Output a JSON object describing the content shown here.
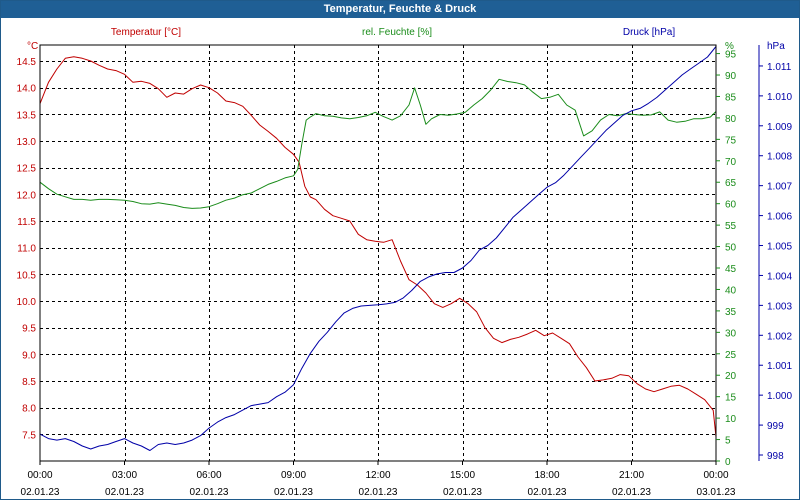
{
  "window": {
    "title": "Temperatur, Feuchte & Druck"
  },
  "colors": {
    "temperature": "#c00000",
    "humidity": "#1a8c1a",
    "pressure": "#0000a8",
    "grid": "#000000",
    "text": "#000000"
  },
  "chart_data": {
    "type": "line",
    "title": "Temperatur, Feuchte & Druck",
    "x": {
      "min": 0,
      "max": 24,
      "ticks": [
        0,
        3,
        6,
        9,
        12,
        15,
        18,
        21,
        24
      ],
      "tick_labels": [
        "00:00",
        "03:00",
        "06:00",
        "09:00",
        "12:00",
        "15:00",
        "18:00",
        "21:00",
        "00:00"
      ],
      "date_labels": [
        "02.01.23",
        "02.01.23",
        "02.01.23",
        "02.01.23",
        "02.01.23",
        "02.01.23",
        "02.01.23",
        "02.01.23",
        "03.01.23"
      ]
    },
    "axes": {
      "temperature": {
        "label": "Temperatur [°C]",
        "unit": "°C",
        "min": 7.0,
        "max": 14.8,
        "ticks": [
          7.5,
          8.0,
          8.5,
          9.0,
          9.5,
          10.0,
          10.5,
          11.0,
          11.5,
          12.0,
          12.5,
          13.0,
          13.5,
          14.0,
          14.5
        ],
        "tick_labels": [
          "7.5",
          "8.0",
          "8.5",
          "9.0",
          "9.5",
          "10.0",
          "10.5",
          "11.0",
          "11.5",
          "12.0",
          "12.5",
          "13.0",
          "13.5",
          "14.0",
          "14.5"
        ]
      },
      "humidity": {
        "label": "rel. Feuchte [%]",
        "unit": "%",
        "min": 0,
        "max": 97,
        "ticks": [
          0,
          5,
          10,
          15,
          20,
          25,
          30,
          35,
          40,
          45,
          50,
          55,
          60,
          65,
          70,
          75,
          80,
          85,
          90,
          95
        ],
        "tick_labels": [
          "0",
          "5",
          "10",
          "15",
          "20",
          "25",
          "30",
          "35",
          "40",
          "45",
          "50",
          "55",
          "60",
          "65",
          "70",
          "75",
          "80",
          "85",
          "90",
          "95"
        ]
      },
      "pressure": {
        "label": "Druck [hPa]",
        "unit": "hPa",
        "min": 997.8,
        "max": 1011.7,
        "ticks": [
          998,
          999,
          1000,
          1001,
          1002,
          1003,
          1004,
          1005,
          1006,
          1007,
          1008,
          1009,
          1010,
          1011
        ],
        "tick_labels": [
          "998",
          "999",
          "1.000",
          "1.001",
          "1.002",
          "1.003",
          "1.004",
          "1.005",
          "1.006",
          "1.007",
          "1.008",
          "1.009",
          "1.010",
          "1.011"
        ]
      }
    },
    "series": [
      {
        "name": "Temperatur [°C]",
        "axis": "temperature",
        "x": [
          0,
          0.3,
          0.6,
          0.9,
          1.2,
          1.5,
          1.8,
          2.1,
          2.4,
          2.7,
          3.0,
          3.3,
          3.6,
          3.9,
          4.2,
          4.5,
          4.8,
          5.1,
          5.4,
          5.7,
          6.0,
          6.3,
          6.6,
          6.9,
          7.2,
          7.5,
          7.8,
          8.1,
          8.4,
          8.7,
          9.0,
          9.2,
          9.4,
          9.6,
          9.8,
          10.1,
          10.4,
          10.7,
          11.0,
          11.3,
          11.6,
          11.9,
          12.2,
          12.5,
          12.8,
          13.1,
          13.4,
          13.7,
          14.0,
          14.3,
          14.6,
          14.9,
          15.2,
          15.5,
          15.8,
          16.1,
          16.4,
          16.7,
          17.0,
          17.3,
          17.6,
          17.9,
          18.2,
          18.5,
          18.8,
          19.1,
          19.4,
          19.7,
          20.0,
          20.3,
          20.6,
          20.9,
          21.2,
          21.5,
          21.8,
          22.1,
          22.4,
          22.7,
          23.0,
          23.3,
          23.6,
          23.9,
          24.0
        ],
        "values": [
          13.7,
          14.1,
          14.35,
          14.55,
          14.58,
          14.55,
          14.5,
          14.42,
          14.35,
          14.32,
          14.25,
          14.1,
          14.12,
          14.08,
          13.98,
          13.82,
          13.9,
          13.88,
          13.98,
          14.05,
          14.0,
          13.9,
          13.75,
          13.72,
          13.65,
          13.48,
          13.3,
          13.18,
          13.05,
          12.88,
          12.75,
          12.6,
          12.15,
          11.95,
          11.9,
          11.72,
          11.6,
          11.55,
          11.5,
          11.25,
          11.15,
          11.12,
          11.1,
          11.15,
          10.75,
          10.4,
          10.3,
          10.15,
          9.95,
          9.88,
          9.95,
          10.05,
          9.95,
          9.8,
          9.5,
          9.3,
          9.22,
          9.28,
          9.32,
          9.38,
          9.45,
          9.35,
          9.4,
          9.3,
          9.2,
          8.95,
          8.75,
          8.5,
          8.52,
          8.55,
          8.62,
          8.6,
          8.45,
          8.35,
          8.3,
          8.35,
          8.4,
          8.42,
          8.35,
          8.25,
          8.15,
          7.95,
          7.45
        ]
      },
      {
        "name": "rel. Feuchte [%]",
        "axis": "humidity",
        "x": [
          0,
          0.3,
          0.6,
          0.9,
          1.2,
          1.5,
          1.8,
          2.1,
          2.4,
          2.7,
          3.0,
          3.3,
          3.6,
          3.9,
          4.2,
          4.5,
          4.8,
          5.1,
          5.4,
          5.7,
          6.0,
          6.3,
          6.6,
          6.9,
          7.2,
          7.5,
          7.8,
          8.1,
          8.4,
          8.7,
          9.0,
          9.15,
          9.3,
          9.45,
          9.6,
          9.8,
          10.1,
          10.4,
          10.7,
          11.0,
          11.3,
          11.6,
          11.9,
          12.2,
          12.5,
          12.8,
          13.1,
          13.3,
          13.5,
          13.7,
          13.9,
          14.2,
          14.5,
          14.8,
          15.1,
          15.4,
          15.7,
          16.0,
          16.3,
          16.6,
          16.9,
          17.2,
          17.5,
          17.8,
          18.1,
          18.4,
          18.7,
          19.0,
          19.3,
          19.6,
          19.9,
          20.2,
          20.5,
          20.8,
          21.1,
          21.4,
          21.7,
          22.0,
          22.3,
          22.6,
          22.9,
          23.2,
          23.5,
          23.8,
          24.0
        ],
        "values": [
          65,
          63.5,
          62.2,
          61.6,
          61.0,
          61.0,
          60.8,
          61.0,
          61.0,
          60.9,
          60.8,
          60.5,
          60.0,
          59.9,
          60.2,
          59.9,
          59.6,
          59.1,
          58.9,
          59.0,
          59.3,
          60.0,
          60.8,
          61.3,
          62.1,
          62.5,
          63.5,
          64.5,
          65.2,
          66.0,
          66.5,
          68.0,
          74.0,
          79.5,
          80.2,
          81.0,
          80.5,
          80.4,
          80.0,
          79.8,
          80.1,
          80.5,
          81.3,
          80.3,
          79.5,
          80.5,
          83.0,
          87.0,
          83.0,
          78.5,
          79.8,
          80.8,
          80.6,
          80.9,
          81.3,
          83.0,
          84.5,
          86.5,
          89.0,
          88.5,
          88.2,
          87.7,
          86.0,
          84.5,
          84.8,
          85.5,
          83.0,
          81.8,
          75.8,
          77.0,
          79.5,
          80.8,
          80.5,
          81.0,
          80.8,
          80.6,
          80.7,
          81.4,
          79.5,
          79.0,
          79.2,
          79.8,
          79.8,
          80.2,
          81.5
        ]
      },
      {
        "name": "Druck [hPa]",
        "axis": "pressure",
        "x": [
          0,
          0.3,
          0.6,
          0.9,
          1.2,
          1.5,
          1.8,
          2.1,
          2.4,
          2.7,
          3.0,
          3.3,
          3.6,
          3.9,
          4.2,
          4.5,
          4.8,
          5.1,
          5.4,
          5.7,
          6.0,
          6.3,
          6.6,
          6.9,
          7.2,
          7.5,
          7.8,
          8.1,
          8.4,
          8.7,
          9.0,
          9.3,
          9.6,
          9.9,
          10.2,
          10.5,
          10.8,
          11.1,
          11.4,
          11.7,
          12.0,
          12.3,
          12.6,
          12.9,
          13.2,
          13.5,
          13.8,
          14.1,
          14.4,
          14.7,
          15.0,
          15.3,
          15.6,
          15.9,
          16.2,
          16.5,
          16.8,
          17.1,
          17.4,
          17.7,
          18.0,
          18.3,
          18.6,
          18.9,
          19.2,
          19.5,
          19.8,
          20.1,
          20.4,
          20.7,
          21.0,
          21.3,
          21.6,
          21.9,
          22.2,
          22.5,
          22.8,
          23.1,
          23.4,
          23.7,
          24.0
        ],
        "values": [
          998.7,
          998.55,
          998.5,
          998.55,
          998.45,
          998.3,
          998.2,
          998.3,
          998.35,
          998.45,
          998.55,
          998.4,
          998.3,
          998.15,
          998.35,
          998.4,
          998.35,
          998.4,
          998.5,
          998.65,
          998.9,
          999.1,
          999.25,
          999.35,
          999.5,
          999.65,
          999.7,
          999.75,
          999.95,
          1000.1,
          1000.35,
          1000.9,
          1001.4,
          1001.8,
          1002.1,
          1002.45,
          1002.75,
          1002.9,
          1002.98,
          1003.0,
          1003.02,
          1003.05,
          1003.1,
          1003.25,
          1003.5,
          1003.8,
          1003.95,
          1004.05,
          1004.1,
          1004.1,
          1004.25,
          1004.5,
          1004.85,
          1005.0,
          1005.25,
          1005.6,
          1005.95,
          1006.2,
          1006.45,
          1006.7,
          1006.95,
          1007.1,
          1007.35,
          1007.65,
          1007.95,
          1008.25,
          1008.55,
          1008.85,
          1009.1,
          1009.35,
          1009.5,
          1009.58,
          1009.75,
          1009.95,
          1010.2,
          1010.45,
          1010.7,
          1010.9,
          1011.1,
          1011.3,
          1011.65
        ]
      }
    ]
  }
}
